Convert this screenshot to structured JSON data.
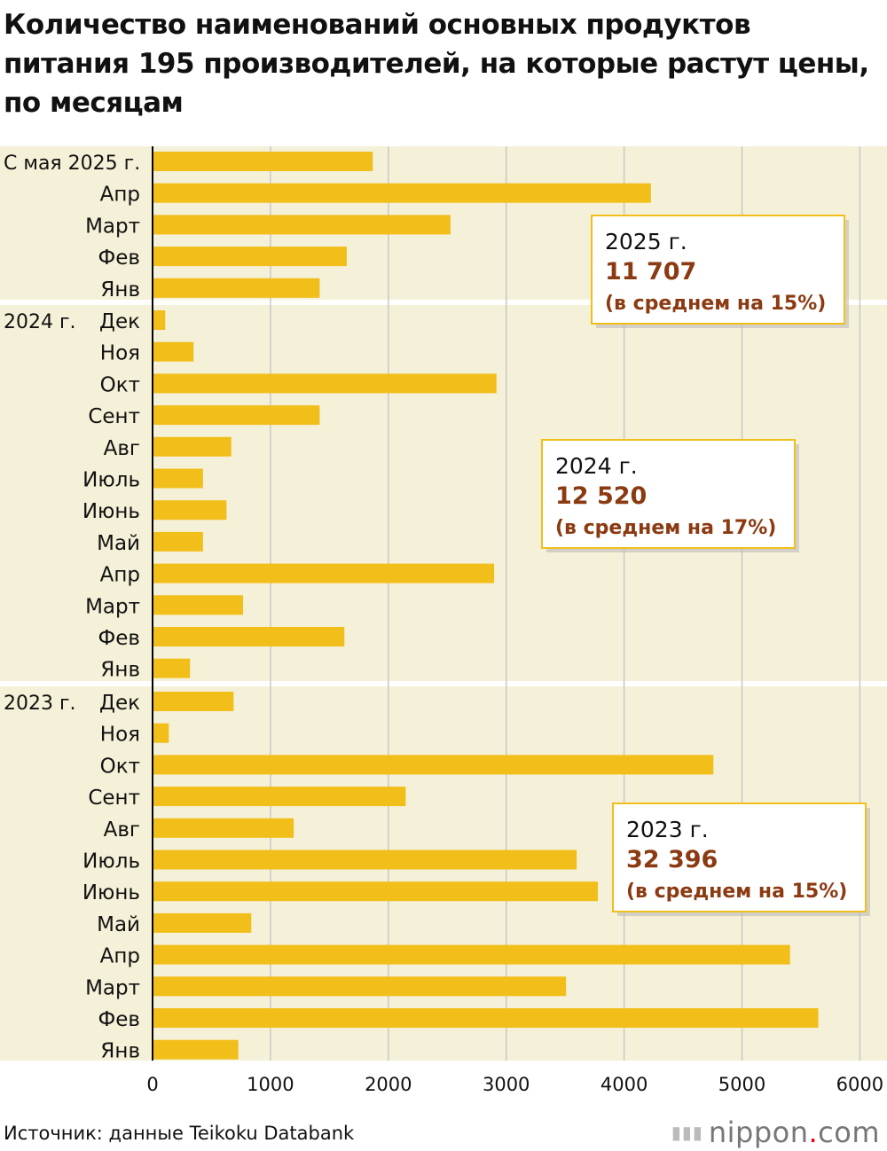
{
  "title": "Количество наименований основных продуктов питания 195 производителей, на которые растут цены, по месяцам",
  "source": "Источник: данные Teikoku Databank",
  "logo": {
    "text": "nippon",
    "dot": ".",
    "suffix": "com"
  },
  "colors": {
    "bar": "#F2BE1A",
    "band": "#F5F1D8",
    "grid": "#C8C8C8",
    "accent": "#8B3A12",
    "axis": "#000000"
  },
  "chart_data": {
    "type": "bar",
    "orientation": "horizontal",
    "xlim": [
      0,
      6000
    ],
    "xticks": [
      "0",
      "1000",
      "2000",
      "3000",
      "4000",
      "5000",
      "6000"
    ],
    "grid": true,
    "groups": [
      {
        "label": "С мая 2025 г.",
        "months": [
          "",
          "Апр",
          "Март",
          "Фев",
          "Янв"
        ],
        "values": [
          1860,
          4220,
          2520,
          1640,
          1410
        ],
        "summary": {
          "year": "2025 г.",
          "total": "11 707",
          "note": "(в среднем на 15%)"
        }
      },
      {
        "label": "2024 г.",
        "months": [
          "Дек",
          "Ноя",
          "Окт",
          "Сент",
          "Авг",
          "Июль",
          "Июнь",
          "Май",
          "Апр",
          "Март",
          "Фев",
          "Янв"
        ],
        "values": [
          100,
          340,
          2910,
          1410,
          660,
          420,
          620,
          420,
          2890,
          760,
          1620,
          310
        ],
        "summary": {
          "year": "2024 г.",
          "total": "12 520",
          "note": "(в среднем на 17%)"
        }
      },
      {
        "label": "2023 г.",
        "months": [
          "Дек",
          "Ноя",
          "Окт",
          "Сент",
          "Авг",
          "Июль",
          "Июнь",
          "Май",
          "Апр",
          "Март",
          "Фев",
          "Янв"
        ],
        "values": [
          680,
          130,
          4750,
          2140,
          1190,
          3590,
          3770,
          830,
          5400,
          3500,
          5640,
          720
        ],
        "summary": {
          "year": "2023 г.",
          "total": "32 396",
          "note": "(в среднем на 15%)"
        }
      }
    ]
  }
}
